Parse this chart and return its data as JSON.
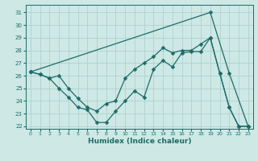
{
  "xlabel": "Humidex (Indice chaleur)",
  "background_color": "#cde8e5",
  "grid_color": "#a8ceca",
  "line_color": "#1e6b68",
  "xlim": [
    -0.5,
    23.5
  ],
  "ylim": [
    21.8,
    31.6
  ],
  "yticks": [
    22,
    23,
    24,
    25,
    26,
    27,
    28,
    29,
    30,
    31
  ],
  "xticks": [
    0,
    1,
    2,
    3,
    4,
    5,
    6,
    7,
    8,
    9,
    10,
    11,
    12,
    13,
    14,
    15,
    16,
    17,
    18,
    19,
    20,
    21,
    22,
    23
  ],
  "series1_x": [
    0,
    1,
    2,
    3,
    4,
    5,
    6,
    7,
    8,
    9,
    10,
    11,
    12,
    13,
    14,
    15,
    16,
    17,
    18,
    19,
    20,
    21,
    22,
    23
  ],
  "series1_y": [
    26.3,
    26.1,
    25.8,
    25.0,
    24.3,
    23.5,
    23.3,
    22.3,
    22.3,
    23.2,
    24.0,
    24.8,
    24.3,
    26.5,
    27.2,
    26.7,
    27.8,
    27.9,
    27.9,
    29.0,
    26.2,
    23.5,
    22.0,
    22.0
  ],
  "series2_x": [
    0,
    1,
    2,
    3,
    4,
    5,
    6,
    7,
    8,
    9,
    10,
    11,
    12,
    13,
    14,
    15,
    16,
    17,
    18,
    19,
    20,
    21,
    22,
    23
  ],
  "series2_y": [
    26.3,
    26.1,
    25.8,
    26.0,
    25.0,
    24.2,
    23.5,
    23.2,
    23.8,
    24.0,
    25.8,
    26.5,
    27.0,
    27.5,
    28.2,
    27.8,
    28.0,
    28.0,
    28.5,
    29.0,
    26.2,
    23.5,
    22.0,
    22.0
  ],
  "series3_x": [
    0,
    19,
    21,
    23
  ],
  "series3_y": [
    26.3,
    31.0,
    26.2,
    22.0
  ],
  "marker_size": 2.5,
  "line_width": 0.9
}
